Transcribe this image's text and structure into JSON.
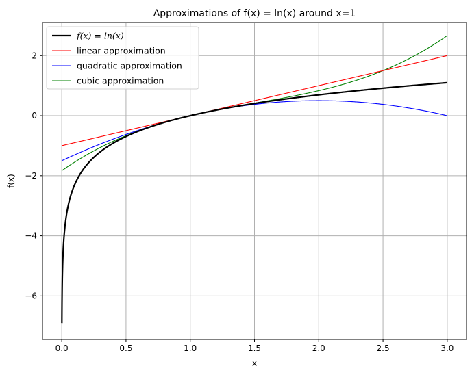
{
  "chart_data": {
    "type": "line",
    "title": "Approximations of f(x) = ln(x) around x=1",
    "xlabel": "x",
    "ylabel": "f(x)",
    "xlim": [
      -0.15,
      3.15
    ],
    "ylim": [
      -7.45,
      3.1
    ],
    "xticks": [
      0.0,
      0.5,
      1.0,
      1.5,
      2.0,
      2.5,
      3.0
    ],
    "xtick_labels": [
      "0.0",
      "0.5",
      "1.0",
      "1.5",
      "2.0",
      "2.5",
      "3.0"
    ],
    "yticks": [
      -6,
      -4,
      -2,
      0,
      2
    ],
    "ytick_labels": [
      "−6",
      "−4",
      "−2",
      "0",
      "2"
    ],
    "grid": true,
    "legend_position": "top-left",
    "x_range": [
      0.001,
      3.0
    ],
    "series": [
      {
        "name_prefix": "f(x) = ln(x)",
        "name": "f(x) = ln(x)",
        "formula": "ln(x)",
        "color": "#000000",
        "line_width": "thick",
        "sample_points": [
          [
            0.001,
            -6.91
          ],
          [
            0.1,
            -2.3
          ],
          [
            0.5,
            -0.69
          ],
          [
            1.0,
            0.0
          ],
          [
            1.5,
            0.41
          ],
          [
            2.0,
            0.69
          ],
          [
            2.5,
            0.92
          ],
          [
            3.0,
            1.1
          ]
        ]
      },
      {
        "name": "linear approximation",
        "formula": "x - 1",
        "color": "#ff0000",
        "line_width": "thin",
        "sample_points": [
          [
            0.0,
            -1.0
          ],
          [
            1.0,
            0.0
          ],
          [
            2.0,
            1.0
          ],
          [
            3.0,
            2.0
          ]
        ]
      },
      {
        "name": "quadratic approximation",
        "formula": "(x - 1) - (x - 1)^2 / 2",
        "color": "#0000ff",
        "line_width": "thin",
        "sample_points": [
          [
            0.0,
            -1.5
          ],
          [
            1.0,
            0.0
          ],
          [
            2.0,
            0.5
          ],
          [
            3.0,
            0.0
          ]
        ]
      },
      {
        "name": "cubic approximation",
        "formula": "(x - 1) - (x - 1)^2 / 2 + (x - 1)^3 / 3",
        "color": "#008000",
        "line_width": "thin",
        "sample_points": [
          [
            0.0,
            -1.833
          ],
          [
            1.0,
            0.0
          ],
          [
            2.0,
            0.833
          ],
          [
            3.0,
            2.667
          ]
        ]
      }
    ]
  }
}
